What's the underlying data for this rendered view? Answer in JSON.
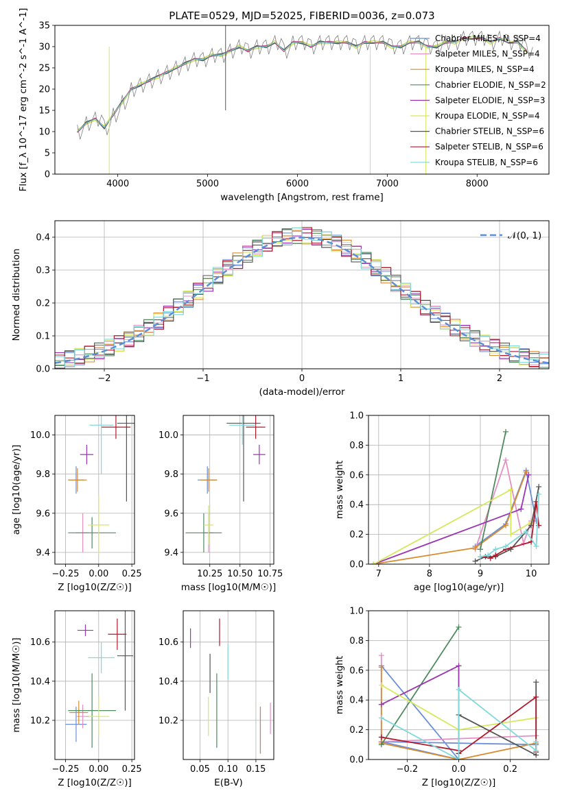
{
  "figure": {
    "title": "PLATE=0529, MJD=52025, FIBERID=0036, z=0.073",
    "model_colors": {
      "Chabrier MILES": "#6b8fd6",
      "Salpeter MILES": "#e58fc3",
      "Kroupa MILES": "#d98a2c",
      "Chabrier ELODIE": "#4f8a5c",
      "Salpeter ELODIE": "#9a35b0",
      "Kroupa ELODIE": "#d5e85a",
      "Chabrier STELIB": "#555555",
      "Salpeter STELIB": "#b0182a",
      "Kroupa STELIB": "#7fd8dc"
    }
  },
  "chart_data": [
    {
      "id": "spectrum",
      "type": "line",
      "xlabel": "wavelength [Angstrom, rest frame]",
      "ylabel": "Flux [f_λ 10^-17 erg cm^-2 s^-1 A^-1]",
      "xlim": [
        3300,
        8800
      ],
      "ylim": [
        0,
        35
      ],
      "xticks": [
        4000,
        5000,
        6000,
        7000,
        8000
      ],
      "yticks": [
        0,
        5,
        10,
        15,
        20,
        25,
        30,
        35
      ],
      "grid": false,
      "legend_position": "right",
      "legend": [
        "Chabrier MILES, N_SSP=4",
        "Salpeter MILES, N_SSP=4",
        "Kroupa MILES, N_SSP=4",
        "Chabrier ELODIE, N_SSP=2",
        "Salpeter ELODIE, N_SSP=3",
        "Kroupa ELODIE, N_SSP=4",
        "Chabrier STELIB, N_SSP=6",
        "Salpeter STELIB, N_SSP=6",
        "Kroupa STELIB, N_SSP=6"
      ],
      "data_color": "#808080",
      "data_x": [
        3550,
        3650,
        3750,
        3850,
        3950,
        4050,
        4150,
        4250,
        4350,
        4450,
        4550,
        4650,
        4750,
        4850,
        4950,
        5050,
        5150,
        5250,
        5350,
        5450,
        5550,
        5650,
        5750,
        5850,
        5950,
        6050,
        6150,
        6250,
        6350,
        6450,
        6550,
        6650,
        6750,
        6850,
        6950,
        7050,
        7150,
        7250,
        7350,
        7450,
        7550,
        7650,
        7750,
        7850,
        7950,
        8050,
        8150,
        8250,
        8350,
        8450,
        8550
      ],
      "data_y": [
        10,
        12,
        13,
        11,
        14,
        17,
        20,
        21,
        22,
        23,
        24,
        25,
        26,
        27,
        27,
        28,
        28,
        29,
        30,
        29,
        30,
        30,
        31,
        29,
        31,
        31,
        30,
        31,
        31,
        31,
        31,
        30,
        31,
        31,
        31,
        30,
        30,
        31,
        31,
        30,
        30,
        31,
        31,
        32,
        32,
        32,
        31,
        32,
        31,
        31,
        29
      ],
      "spikes": [
        {
          "x": 3905,
          "y": 0
        },
        {
          "x": 5200,
          "y": 36
        },
        {
          "x": 5200,
          "y": 15
        },
        {
          "x": 6810,
          "y": 0
        },
        {
          "x": 7430,
          "y": 0
        }
      ]
    },
    {
      "id": "residuals",
      "type": "line",
      "xlabel": "(data-model)/error",
      "ylabel": "Normed distribution",
      "xlim": [
        -2.5,
        2.5
      ],
      "ylim": [
        0,
        0.45
      ],
      "xticks": [
        -2,
        -1,
        0,
        1,
        2
      ],
      "yticks": [
        0.0,
        0.1,
        0.2,
        0.3,
        0.4
      ],
      "grid": true,
      "legend": [
        "𝒩(0, 1)"
      ],
      "legend_position": "top-right",
      "gaussian_color": "#5b8ed6",
      "bin_width": 0.1,
      "bin_start": -2.5,
      "hist_base": [
        0.02,
        0.025,
        0.03,
        0.035,
        0.04,
        0.045,
        0.055,
        0.065,
        0.075,
        0.085,
        0.095,
        0.11,
        0.125,
        0.14,
        0.155,
        0.17,
        0.185,
        0.2,
        0.22,
        0.24,
        0.26,
        0.28,
        0.3,
        0.315,
        0.33,
        0.345,
        0.36,
        0.37,
        0.38,
        0.39,
        0.395,
        0.395,
        0.4,
        0.4,
        0.4,
        0.4,
        0.395,
        0.39,
        0.385,
        0.38,
        0.37,
        0.36,
        0.35,
        0.335,
        0.32,
        0.3,
        0.285,
        0.265,
        0.25,
        0.23,
        0.21,
        0.19,
        0.175,
        0.16,
        0.145,
        0.13,
        0.115,
        0.1,
        0.09,
        0.08,
        0.07,
        0.06,
        0.055,
        0.05,
        0.045,
        0.04,
        0.035,
        0.03,
        0.028,
        0.026,
        0.024,
        0.022,
        0.02,
        0.02,
        0.02,
        0.02,
        0.02,
        0.02,
        0.02,
        0.02,
        0.02,
        0.02,
        0.02,
        0.02,
        0.02,
        0.02,
        0.02,
        0.02,
        0.02,
        0.02,
        0.02,
        0.02,
        0.02,
        0.02,
        0.02,
        0.02,
        0.02,
        0.02,
        0.02,
        0.02
      ]
    },
    {
      "id": "age_vs_Z",
      "type": "scatter",
      "xlabel": "Z [log10(Z/Z☉)]",
      "ylabel": "age  [log10(age/yr)]",
      "xlim": [
        -0.33,
        0.27
      ],
      "ylim": [
        9.34,
        10.1
      ],
      "xticks": [
        -0.25,
        0.0,
        0.25
      ],
      "yticks": [
        9.4,
        9.6,
        9.8,
        10.0
      ],
      "grid": true,
      "points": [
        {
          "model": "Chabrier MILES",
          "x": -0.17,
          "y": 9.77,
          "xerr": 0.06,
          "yerr": 0.07
        },
        {
          "model": "Salpeter MILES",
          "x": -0.12,
          "y": 9.5,
          "xerr": 0.05,
          "yerr": 0.1
        },
        {
          "model": "Kroupa MILES",
          "x": -0.16,
          "y": 9.77,
          "xerr": 0.07,
          "yerr": 0.06
        },
        {
          "model": "Chabrier ELODIE",
          "x": -0.05,
          "y": 9.5,
          "xerr": 0.18,
          "yerr": 0.08
        },
        {
          "model": "Salpeter ELODIE",
          "x": -0.09,
          "y": 9.9,
          "xerr": 0.05,
          "yerr": 0.05
        },
        {
          "model": "Kroupa ELODIE",
          "x": 0.0,
          "y": 9.54,
          "xerr": 0.08,
          "yerr": 0.15
        },
        {
          "model": "Chabrier STELIB",
          "x": 0.21,
          "y": 10.06,
          "xerr": 0.07,
          "yerr": 0.4
        },
        {
          "model": "Salpeter STELIB",
          "x": 0.13,
          "y": 10.04,
          "xerr": 0.11,
          "yerr": 0.06
        },
        {
          "model": "Kroupa STELIB",
          "x": 0.02,
          "y": 10.05,
          "xerr": 0.09,
          "yerr": 0.25
        }
      ]
    },
    {
      "id": "age_vs_mass",
      "type": "scatter",
      "xlabel": "mass [log10(M/M☉)]",
      "ylabel": "",
      "xlim": [
        10.03,
        10.78
      ],
      "ylim": [
        9.34,
        10.1
      ],
      "xticks": [
        10.25,
        10.5,
        10.75
      ],
      "yticks": [
        9.4,
        9.6,
        9.8,
        10.0
      ],
      "grid": true,
      "points": [
        {
          "model": "Chabrier MILES",
          "x": 10.23,
          "y": 9.77,
          "xerr": 0.08,
          "yerr": 0.07
        },
        {
          "model": "Salpeter MILES",
          "x": 10.24,
          "y": 9.5,
          "xerr": 0.04,
          "yerr": 0.1
        },
        {
          "model": "Kroupa MILES",
          "x": 10.24,
          "y": 9.77,
          "xerr": 0.07,
          "yerr": 0.06
        },
        {
          "model": "Chabrier ELODIE",
          "x": 10.2,
          "y": 9.5,
          "xerr": 0.15,
          "yerr": 0.1
        },
        {
          "model": "Salpeter ELODIE",
          "x": 10.66,
          "y": 9.9,
          "xerr": 0.05,
          "yerr": 0.05
        },
        {
          "model": "Kroupa ELODIE",
          "x": 10.24,
          "y": 9.54,
          "xerr": 0.04,
          "yerr": 0.1
        },
        {
          "model": "Chabrier STELIB",
          "x": 10.53,
          "y": 10.06,
          "xerr": 0.14,
          "yerr": 0.4
        },
        {
          "model": "Salpeter STELIB",
          "x": 10.63,
          "y": 10.04,
          "xerr": 0.08,
          "yerr": 0.06
        },
        {
          "model": "Kroupa STELIB",
          "x": 10.52,
          "y": 10.05,
          "xerr": 0.11,
          "yerr": 0.1
        }
      ]
    },
    {
      "id": "mass_weight_vs_age",
      "type": "line",
      "xlabel": "age  [log10(age/yr)]",
      "ylabel": "mass weight",
      "xlim": [
        6.8,
        10.35
      ],
      "ylim": [
        0,
        1.0
      ],
      "xticks": [
        7,
        8,
        9,
        10
      ],
      "yticks": [
        0.0,
        0.2,
        0.4,
        0.6,
        0.8,
        1.0
      ],
      "grid": true,
      "series": [
        {
          "model": "Chabrier MILES",
          "x": [
            8.9,
            9.5,
            9.9,
            10.1
          ],
          "y": [
            0.12,
            0.27,
            0.63,
            0.29
          ]
        },
        {
          "model": "Salpeter MILES",
          "x": [
            8.9,
            9.5,
            9.85,
            10.0
          ],
          "y": [
            0.1,
            0.7,
            0.14,
            0.29
          ]
        },
        {
          "model": "Kroupa MILES",
          "x": [
            6.9,
            8.9,
            9.5,
            9.9
          ],
          "y": [
            0.0,
            0.11,
            0.26,
            0.62
          ]
        },
        {
          "model": "Chabrier ELODIE",
          "x": [
            9.0,
            9.5
          ],
          "y": [
            0.1,
            0.89
          ]
        },
        {
          "model": "Salpeter ELODIE",
          "x": [
            6.9,
            9.8,
            9.95
          ],
          "y": [
            0.0,
            0.37,
            0.6
          ]
        },
        {
          "model": "Kroupa ELODIE",
          "x": [
            6.9,
            9.6,
            9.6,
            10.0
          ],
          "y": [
            0.0,
            0.5,
            0.2,
            0.28
          ]
        },
        {
          "model": "Chabrier STELIB",
          "x": [
            8.9,
            9.1,
            9.3,
            9.6,
            10.0,
            10.15
          ],
          "y": [
            0.02,
            0.05,
            0.05,
            0.1,
            0.26,
            0.52
          ]
        },
        {
          "model": "Salpeter STELIB",
          "x": [
            9.0,
            9.2,
            9.3,
            9.5,
            10.0,
            10.1,
            10.15
          ],
          "y": [
            0.05,
            0.04,
            0.06,
            0.1,
            0.15,
            0.42,
            0.26
          ]
        },
        {
          "model": "Kroupa STELIB",
          "x": [
            9.0,
            9.15,
            9.3,
            9.5,
            9.9,
            10.1,
            10.15
          ],
          "y": [
            0.05,
            0.06,
            0.1,
            0.12,
            0.22,
            0.12,
            0.47
          ]
        }
      ]
    },
    {
      "id": "mass_vs_Z",
      "type": "scatter",
      "xlabel": "Z [log10(Z/Z☉)]",
      "ylabel": "mass [log10(M/M☉)]",
      "xlim": [
        -0.33,
        0.27
      ],
      "ylim": [
        10.0,
        10.76
      ],
      "xticks": [
        -0.25,
        0.0,
        0.25
      ],
      "yticks": [
        10.2,
        10.4,
        10.6
      ],
      "grid": true,
      "points": [
        {
          "model": "Chabrier MILES",
          "x": -0.17,
          "y": 10.18,
          "xerr": 0.08,
          "yerr": 0.09
        },
        {
          "model": "Salpeter MILES",
          "x": -0.12,
          "y": 10.22,
          "xerr": 0.05,
          "yerr": 0.06
        },
        {
          "model": "Kroupa MILES",
          "x": -0.15,
          "y": 10.24,
          "xerr": 0.07,
          "yerr": 0.06
        },
        {
          "model": "Chabrier ELODIE",
          "x": -0.05,
          "y": 10.25,
          "xerr": 0.18,
          "yerr": 0.19
        },
        {
          "model": "Salpeter ELODIE",
          "x": -0.1,
          "y": 10.66,
          "xerr": 0.06,
          "yerr": 0.03
        },
        {
          "model": "Kroupa ELODIE",
          "x": 0.0,
          "y": 10.22,
          "xerr": 0.08,
          "yerr": 0.1
        },
        {
          "model": "Chabrier STELIB",
          "x": 0.2,
          "y": 10.53,
          "xerr": 0.06,
          "yerr": 0.28
        },
        {
          "model": "Salpeter STELIB",
          "x": 0.14,
          "y": 10.64,
          "xerr": 0.07,
          "yerr": 0.08
        },
        {
          "model": "Kroupa STELIB",
          "x": 0.02,
          "y": 10.52,
          "xerr": 0.1,
          "yerr": 0.08
        }
      ]
    },
    {
      "id": "mass_vs_ebv",
      "type": "scatter",
      "xlabel": "E(B-V)",
      "ylabel": "",
      "xlim": [
        0.02,
        0.182
      ],
      "ylim": [
        10.0,
        10.76
      ],
      "xticks": [
        0.05,
        0.1,
        0.15
      ],
      "yticks": [
        10.2,
        10.4,
        10.6
      ],
      "grid": true,
      "points": [
        {
          "model": "Chabrier MILES",
          "x": 0.158,
          "y": 10.15,
          "xerr": 0,
          "yerr": 0.12
        },
        {
          "model": "Salpeter MILES",
          "x": 0.176,
          "y": 10.21,
          "xerr": 0,
          "yerr": 0.08
        },
        {
          "model": "Kroupa MILES",
          "x": 0.158,
          "y": 10.15,
          "xerr": 0,
          "yerr": 0.12
        },
        {
          "model": "Chabrier ELODIE",
          "x": 0.08,
          "y": 10.25,
          "xerr": 0,
          "yerr": 0.19
        },
        {
          "model": "Salpeter ELODIE",
          "x": 0.033,
          "y": 10.62,
          "xerr": 0,
          "yerr": 0.05
        },
        {
          "model": "Kroupa ELODIE",
          "x": 0.065,
          "y": 10.22,
          "xerr": 0,
          "yerr": 0.1
        },
        {
          "model": "Chabrier STELIB",
          "x": 0.068,
          "y": 10.44,
          "xerr": 0,
          "yerr": 0.1
        },
        {
          "model": "Salpeter STELIB",
          "x": 0.085,
          "y": 10.65,
          "xerr": 0,
          "yerr": 0.07
        },
        {
          "model": "Kroupa STELIB",
          "x": 0.1,
          "y": 10.5,
          "xerr": 0,
          "yerr": 0.09
        }
      ]
    },
    {
      "id": "mass_weight_vs_Z",
      "type": "line",
      "xlabel": "Z [log10(Z/Z☉)]",
      "ylabel": "mass weight",
      "xlim": [
        -0.35,
        0.35
      ],
      "ylim": [
        0,
        1.0
      ],
      "xticks": [
        -0.2,
        0.0,
        0.2
      ],
      "yticks": [
        0.0,
        0.2,
        0.4,
        0.6,
        0.8,
        1.0
      ],
      "grid": true,
      "series": [
        {
          "model": "Chabrier MILES",
          "x": [
            -0.3,
            0.0,
            -0.3,
            0.3
          ],
          "y": [
            0.63,
            0.0,
            0.12,
            0.1
          ]
        },
        {
          "model": "Salpeter MILES",
          "x": [
            -0.3,
            -0.3,
            0.0,
            0.3
          ],
          "y": [
            0.7,
            0.12,
            0.14,
            0.16
          ]
        },
        {
          "model": "Kroupa MILES",
          "x": [
            -0.3,
            -0.3,
            0.0,
            0.3
          ],
          "y": [
            0.62,
            0.11,
            0.0,
            0.11
          ]
        },
        {
          "model": "Chabrier ELODIE",
          "x": [
            -0.3,
            0.0
          ],
          "y": [
            0.1,
            0.89
          ]
        },
        {
          "model": "Salpeter ELODIE",
          "x": [
            -0.3,
            0.0,
            0.0
          ],
          "y": [
            0.37,
            0.63,
            0.0
          ]
        },
        {
          "model": "Kroupa ELODIE",
          "x": [
            -0.3,
            0.0,
            0.3
          ],
          "y": [
            0.5,
            0.2,
            0.28
          ]
        },
        {
          "model": "Chabrier STELIB",
          "x": [
            0.0,
            0.0,
            0.3,
            0.3
          ],
          "y": [
            0.04,
            0.3,
            0.03,
            0.52
          ]
        },
        {
          "model": "Salpeter STELIB",
          "x": [
            -0.3,
            0.0,
            0.0,
            0.3,
            0.3
          ],
          "y": [
            0.15,
            0.06,
            0.04,
            0.42,
            0.05
          ]
        },
        {
          "model": "Kroupa STELIB",
          "x": [
            -0.3,
            0.0,
            0.0,
            0.3,
            0.3
          ],
          "y": [
            0.28,
            0.0,
            0.47,
            0.06,
            0.12
          ]
        }
      ]
    }
  ]
}
